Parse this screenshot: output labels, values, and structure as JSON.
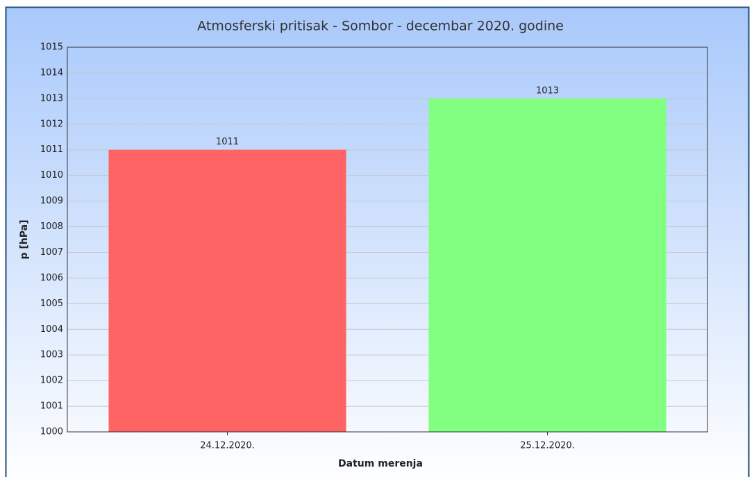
{
  "chart_data": {
    "type": "bar",
    "title": "Atmosferski pritisak - Sombor - decembar 2020. godine",
    "x_label": "Datum merenja",
    "y_label": "p [hPa]",
    "categories": [
      "24.12.2020.",
      "25.12.2020."
    ],
    "values": [
      1011,
      1013
    ],
    "colors": [
      "#ff6464",
      "#80ff80"
    ],
    "ylim": [
      1000,
      1015
    ],
    "yticks": [
      1000,
      1001,
      1002,
      1003,
      1004,
      1005,
      1006,
      1007,
      1008,
      1009,
      1010,
      1011,
      1012,
      1013,
      1014,
      1015
    ],
    "grid": true
  }
}
